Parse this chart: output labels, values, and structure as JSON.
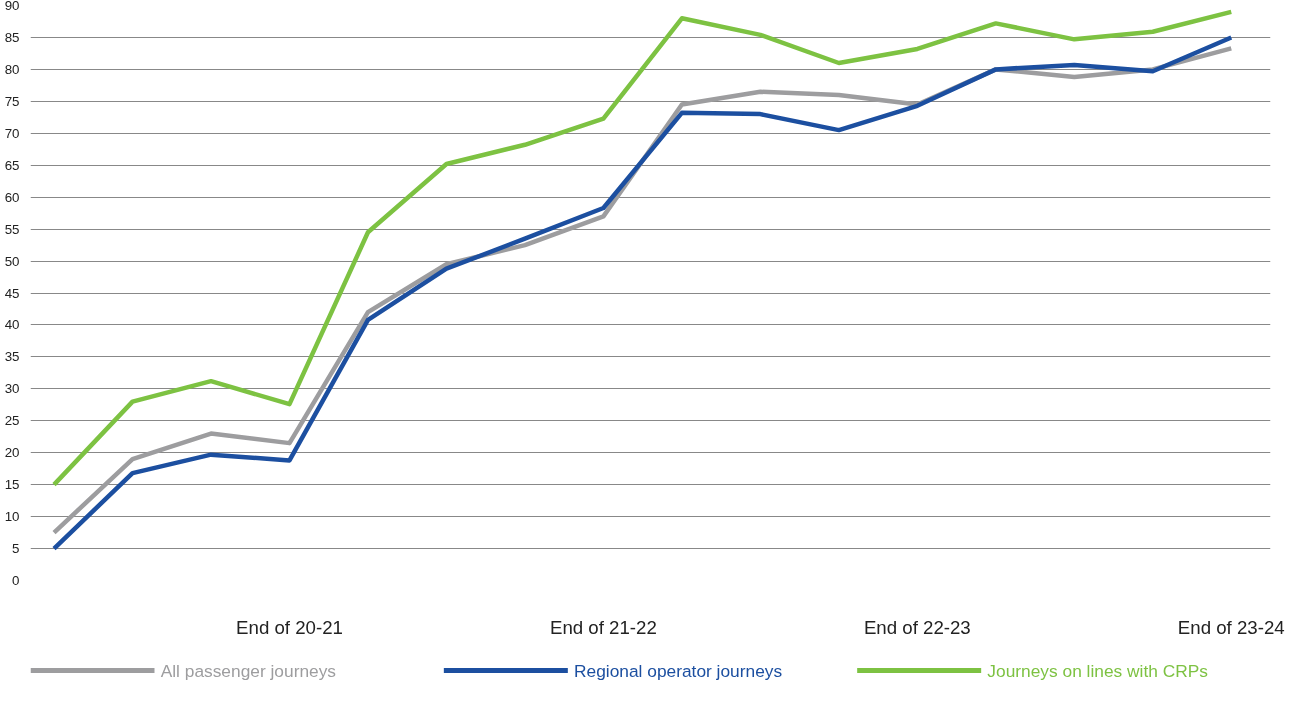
{
  "chart_data": {
    "type": "line",
    "categories": [
      null,
      null,
      null,
      "End of 20-21",
      null,
      null,
      null,
      "End of 21-22",
      null,
      null,
      null,
      "End of 22-23",
      null,
      null,
      null,
      "End of 23-24"
    ],
    "series": [
      {
        "name": "All passenger journeys",
        "color": "#9d9d9f",
        "values": [
          7.5,
          19,
          23,
          21.5,
          42,
          49.5,
          52.5,
          57,
          74.5,
          76.5,
          76,
          74.5,
          80,
          78.8,
          80,
          83.3
        ]
      },
      {
        "name": "Regional operator journeys",
        "color": "#1c4fa0",
        "values": [
          5,
          16.8,
          19.7,
          18.8,
          40.8,
          48.8,
          53.5,
          58.3,
          73.2,
          73,
          70.5,
          74.3,
          80,
          80.7,
          79.7,
          85
        ]
      },
      {
        "name": "Journeys on lines with CRPs",
        "color": "#7dc242",
        "values": [
          15,
          28,
          31.2,
          27.6,
          54.5,
          65.2,
          68.2,
          72.3,
          88,
          85.4,
          81,
          83.2,
          87.2,
          84.7,
          85.9,
          89
        ]
      }
    ],
    "ylim": [
      0,
      90
    ],
    "yticks": [
      0,
      5,
      10,
      15,
      20,
      25,
      30,
      35,
      40,
      45,
      50,
      55,
      60,
      65,
      70,
      75,
      80,
      85,
      90
    ],
    "grid": "y",
    "legend": "bottom",
    "marker": "none",
    "line_style": "solid"
  }
}
